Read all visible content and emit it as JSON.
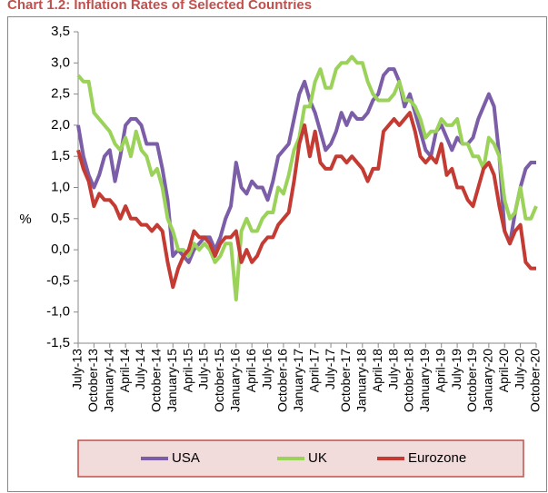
{
  "chart_data": {
    "type": "line",
    "title": "Chart 1.2: Inflation Rates of Selected Countries",
    "ylabel": "%",
    "categories": [
      "July-13",
      null,
      null,
      "October-13",
      null,
      null,
      "January-14",
      null,
      null,
      "April-14",
      null,
      null,
      "July-14",
      null,
      null,
      "October-14",
      null,
      null,
      "January-15",
      null,
      null,
      "April-15",
      null,
      null,
      "July-15",
      null,
      null,
      "October-15",
      null,
      null,
      "January-16",
      null,
      null,
      "April-16",
      null,
      null,
      "July-16",
      null,
      null,
      "October-16",
      null,
      null,
      "January-17",
      null,
      null,
      "April-17",
      null,
      null,
      "July-17",
      null,
      null,
      "October-17",
      null,
      null,
      "January-18",
      null,
      null,
      "April-18",
      null,
      null,
      "July-18",
      null,
      null,
      "October-18",
      null,
      null,
      "January-19",
      null,
      null,
      "April-19",
      null,
      null,
      "July-19",
      null,
      null,
      "October-19",
      null,
      null,
      "January-20",
      null,
      null,
      "April-20",
      null,
      null,
      "July-20",
      null,
      null,
      "October-20"
    ],
    "series": [
      {
        "name": "USA",
        "color": "#7b5ea7",
        "values": [
          2.0,
          1.5,
          1.2,
          1.0,
          1.2,
          1.5,
          1.6,
          1.1,
          1.5,
          2.0,
          2.1,
          2.1,
          2.0,
          1.7,
          1.7,
          1.7,
          1.3,
          0.8,
          -0.1,
          0.0,
          -0.1,
          -0.2,
          0.0,
          0.1,
          0.2,
          0.2,
          0.0,
          0.2,
          0.5,
          0.7,
          1.4,
          1.0,
          0.9,
          1.1,
          1.0,
          1.0,
          0.8,
          1.1,
          1.5,
          1.6,
          1.7,
          2.1,
          2.5,
          2.7,
          2.4,
          2.2,
          1.9,
          1.6,
          1.7,
          1.9,
          2.2,
          2.0,
          2.2,
          2.1,
          2.1,
          2.2,
          2.4,
          2.5,
          2.8,
          2.9,
          2.9,
          2.7,
          2.3,
          2.5,
          2.2,
          1.9,
          1.6,
          1.5,
          1.9,
          2.0,
          1.8,
          1.6,
          1.8,
          1.7,
          1.7,
          1.8,
          2.1,
          2.3,
          2.5,
          2.3,
          1.5,
          0.3,
          0.1,
          0.6,
          1.0,
          1.3,
          1.4,
          1.4
        ]
      },
      {
        "name": "UK",
        "color": "#9bd25a",
        "values": [
          2.8,
          2.7,
          2.7,
          2.2,
          2.1,
          2.0,
          1.9,
          1.7,
          1.6,
          1.8,
          1.5,
          1.9,
          1.6,
          1.5,
          1.2,
          1.3,
          1.0,
          0.5,
          0.3,
          0.0,
          0.0,
          -0.1,
          0.1,
          0.0,
          0.1,
          0.0,
          -0.2,
          -0.1,
          0.1,
          0.1,
          -0.8,
          0.3,
          0.5,
          0.3,
          0.3,
          0.5,
          0.6,
          0.6,
          1.0,
          0.9,
          1.2,
          1.6,
          1.8,
          2.3,
          2.3,
          2.7,
          2.9,
          2.6,
          2.6,
          2.9,
          3.0,
          3.0,
          3.1,
          3.0,
          3.0,
          2.7,
          2.5,
          2.4,
          2.4,
          2.4,
          2.5,
          2.7,
          2.4,
          2.4,
          2.3,
          2.1,
          1.8,
          1.9,
          1.9,
          2.1,
          2.0,
          2.0,
          2.1,
          1.7,
          1.7,
          1.5,
          1.5,
          1.3,
          1.8,
          1.7,
          1.5,
          0.8,
          0.5,
          0.6,
          1.0,
          0.5,
          0.5,
          0.7
        ]
      },
      {
        "name": "Eurozone",
        "color": "#c43b33",
        "values": [
          1.6,
          1.3,
          1.1,
          0.7,
          0.9,
          0.8,
          0.8,
          0.7,
          0.5,
          0.7,
          0.5,
          0.5,
          0.4,
          0.4,
          0.3,
          0.4,
          0.3,
          -0.2,
          -0.6,
          -0.3,
          -0.1,
          0.0,
          0.3,
          0.2,
          0.2,
          0.1,
          -0.1,
          0.1,
          0.2,
          0.2,
          0.3,
          -0.2,
          0.0,
          -0.2,
          -0.1,
          0.1,
          0.2,
          0.2,
          0.4,
          0.5,
          0.6,
          1.1,
          1.7,
          2.0,
          1.5,
          1.9,
          1.4,
          1.3,
          1.3,
          1.5,
          1.5,
          1.4,
          1.5,
          1.4,
          1.3,
          1.1,
          1.3,
          1.3,
          1.9,
          2.0,
          2.1,
          2.0,
          2.1,
          2.2,
          1.9,
          1.5,
          1.4,
          1.5,
          1.4,
          1.7,
          1.2,
          1.3,
          1.0,
          1.0,
          0.8,
          0.7,
          1.0,
          1.3,
          1.4,
          1.2,
          0.7,
          0.3,
          0.1,
          0.3,
          0.4,
          -0.2,
          -0.3,
          -0.3
        ]
      }
    ],
    "ylim": [
      -1.5,
      3.5
    ],
    "yticks": [
      {
        "value": -1.5,
        "label": "-1,5"
      },
      {
        "value": -1.0,
        "label": "-1,0"
      },
      {
        "value": -0.5,
        "label": "-0,5"
      },
      {
        "value": 0,
        "label": "0,0"
      },
      {
        "value": 0.5,
        "label": "0,5"
      },
      {
        "value": 1.0,
        "label": "1,0"
      },
      {
        "value": 1.5,
        "label": "1,5"
      },
      {
        "value": 2.0,
        "label": "2,0"
      },
      {
        "value": 2.5,
        "label": "2,5"
      },
      {
        "value": 3.0,
        "label": "3,0"
      },
      {
        "value": 3.5,
        "label": "3,5"
      }
    ],
    "grid": false,
    "legend": "bottom"
  }
}
